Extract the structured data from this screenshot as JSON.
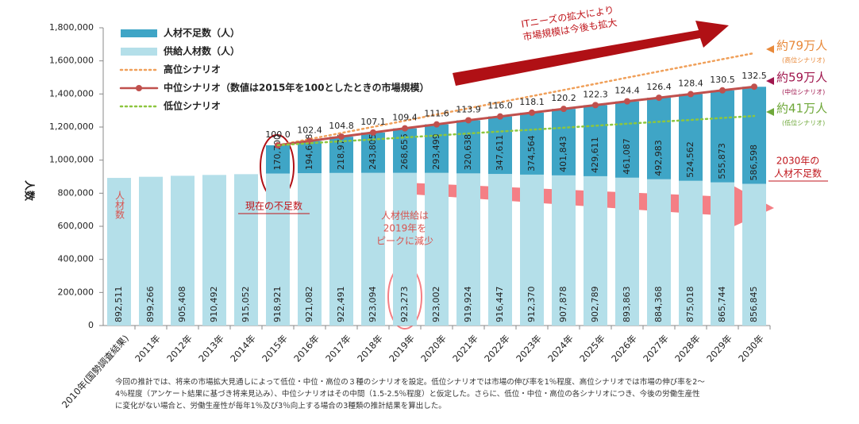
{
  "chart_data": {
    "type": "bar",
    "stacked": true,
    "y_label": "人数",
    "categories": [
      "2010年(国勢調査結果)",
      "2011年",
      "2012年",
      "2013年",
      "2014年",
      "2015年",
      "2016年",
      "2017年",
      "2018年",
      "2019年",
      "2020年",
      "2021年",
      "2022年",
      "2023年",
      "2024年",
      "2025年",
      "2026年",
      "2027年",
      "2028年",
      "2029年",
      "2030年"
    ],
    "ylim": [
      0,
      1800000
    ],
    "yticks": [
      0,
      {
        "value": 200000,
        "label": "200,000"
      },
      {
        "value": 400000,
        "label": "400,000"
      },
      {
        "value": 600000,
        "label": "600,000"
      },
      {
        "value": 800000,
        "label": "800,000"
      },
      {
        "value": 1000000,
        "label": "1,000,000"
      },
      {
        "value": 1200000,
        "label": "1,200,000"
      },
      {
        "value": 1400000,
        "label": "1,400,000"
      },
      {
        "value": 1600000,
        "label": "1,600,000"
      },
      {
        "value": 1800000,
        "label": "1,800,000"
      }
    ],
    "y2lim": [
      0,
      165.2
    ],
    "series": [
      {
        "name": "供給人材数（人）",
        "type": "bar",
        "color": "#b4dfe9",
        "values": [
          892511,
          899266,
          905408,
          910492,
          915052,
          918921,
          921082,
          922491,
          923094,
          923273,
          923002,
          919924,
          916447,
          912370,
          907878,
          902789,
          893863,
          884368,
          875018,
          865744,
          856845
        ],
        "value_labels": [
          "892,511",
          "899,266",
          "905,408",
          "910,492",
          "915,052",
          "918,921",
          "921,082",
          "922,491",
          "923,094",
          "923,273",
          "923,002",
          "919,924",
          "916,447",
          "912,370",
          "907,878",
          "902,789",
          "893,863",
          "884,368",
          "875,018",
          "865,744",
          "856,845"
        ]
      },
      {
        "name": "人材不足数（人）",
        "type": "bar",
        "color": "#3fa5c6",
        "values": [
          null,
          null,
          null,
          null,
          null,
          170700,
          194608,
          218976,
          243805,
          268655,
          293499,
          320638,
          347611,
          374564,
          401843,
          429611,
          461087,
          492983,
          524562,
          555873,
          586598
        ],
        "value_labels": [
          null,
          null,
          null,
          null,
          null,
          "170,700",
          "194,608",
          "218,976",
          "243,805",
          "268,655",
          "293,499",
          "320,638",
          "347,611",
          "374,564",
          "401,843",
          "429,611",
          "461,087",
          "492,983",
          "524,562",
          "555,873",
          "586,598"
        ]
      },
      {
        "name": "高位シナリオ",
        "type": "line",
        "style": "dotted",
        "color": "#f0a05a",
        "values": [
          null,
          null,
          null,
          null,
          null,
          1090000,
          1127000,
          1164000,
          1201000,
          1238000,
          1276000,
          1313000,
          1350000,
          1387000,
          1424000,
          1461000,
          1499000,
          1536000,
          1573000,
          1610000,
          1647000
        ]
      },
      {
        "name": "中位シナリオ（数値は2015年を100としたときの市場規模）",
        "type": "line",
        "style": "solid",
        "color": "#c0504d",
        "axis": "y2",
        "values": [
          null,
          null,
          null,
          null,
          null,
          100.0,
          102.4,
          104.8,
          107.1,
          109.4,
          111.6,
          113.9,
          116.0,
          118.1,
          120.2,
          122.3,
          124.4,
          126.4,
          128.4,
          130.5,
          132.5
        ],
        "value_labels": [
          null,
          null,
          null,
          null,
          null,
          "100.0",
          "102.4",
          "104.8",
          "107.1",
          "109.4",
          "111.6",
          "113.9",
          "116.0",
          "118.1",
          "120.2",
          "122.3",
          "124.4",
          "126.4",
          "128.4",
          "130.5",
          "132.5"
        ]
      },
      {
        "name": "低位シナリオ",
        "type": "line",
        "style": "dotted",
        "color": "#8dc63f",
        "values": [
          null,
          null,
          null,
          null,
          null,
          1090000,
          1102000,
          1114000,
          1125000,
          1137000,
          1149000,
          1161000,
          1173000,
          1184000,
          1196000,
          1208000,
          1220000,
          1232000,
          1243000,
          1255000,
          1267000
        ]
      }
    ],
    "annotations": {
      "market": [
        "ITニーズの拡大により",
        "市場規模は今後も拡大"
      ],
      "high": [
        "約79万人",
        "(高位シナリオ)"
      ],
      "mid": [
        "約59万人",
        "(中位シナリオ)"
      ],
      "low": [
        "約41万人",
        "(低位シナリオ)"
      ],
      "shortage_2030": [
        "2030年の",
        "人材不足数"
      ],
      "current": "現在の不足数",
      "supply_peak": [
        "人材供給は",
        "2019年を",
        "ピークに減少"
      ],
      "supply_label": "人材数"
    },
    "note": [
      "今回の推計では、将来の市場拡大見通しによって低位・中位・高位の３種のシナリオを設定。低位シナリオでは市場の伸び率を1％程度、高位シナリオでは市場の伸び率を2～",
      "4％程度（アンケート結果に基づき将来見込み）、中位シナリオはその中間（1.5-2.5％程度）と仮定した。さらに、低位・中位・高位の各シナリオにつき、今後の労働生産性",
      "に変化がない場合と、労働生産性が毎年1％及び3％向上する場合の3種類の推計結果を算出した。"
    ]
  }
}
